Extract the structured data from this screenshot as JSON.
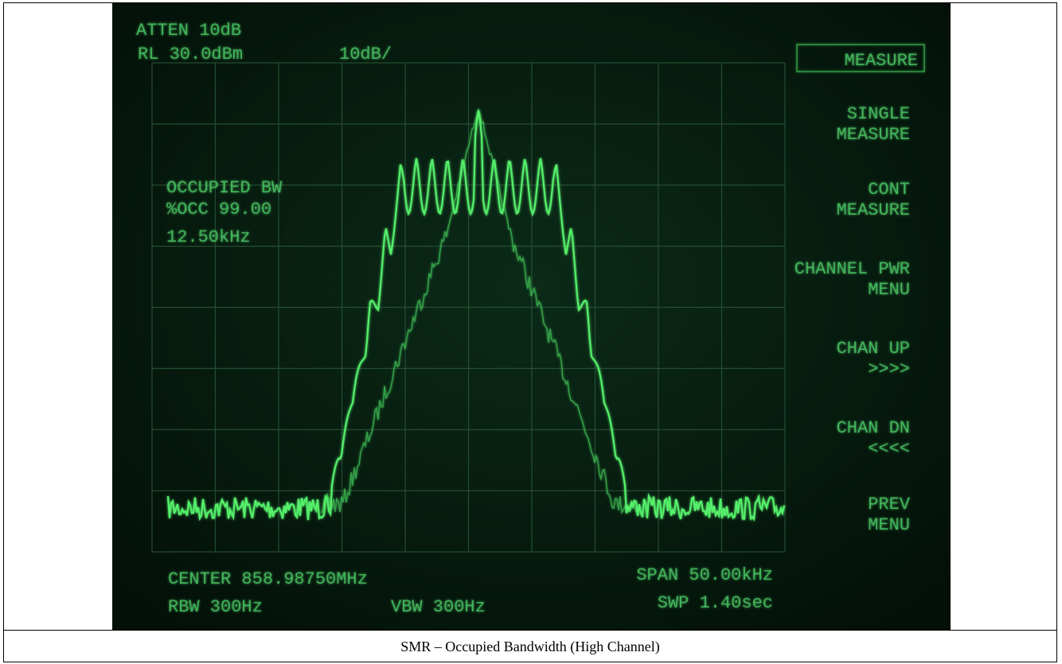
{
  "screen": {
    "header": [
      "ATTEN 10dB",
      "RL 30.0dBm",
      "10dB/"
    ],
    "softkeys": [
      "MEASURE",
      "SINGLE MEASURE",
      "CONT MEASURE",
      "CHANNEL PWR MENU",
      "CHAN UP >>>>",
      "CHAN DN <<<<",
      "PREV MENU"
    ],
    "readout": [
      "OCCUPIED BW",
      "%OCC 99.00",
      "12.50kHz"
    ],
    "footer": [
      "CENTER 858.98750MHz",
      "SPAN 50.00kHz",
      "RBW 300Hz",
      "VBW 300Hz",
      "SWP 1.40sec"
    ]
  },
  "caption": "SMR – Occupied Bandwidth (High Channel)"
}
